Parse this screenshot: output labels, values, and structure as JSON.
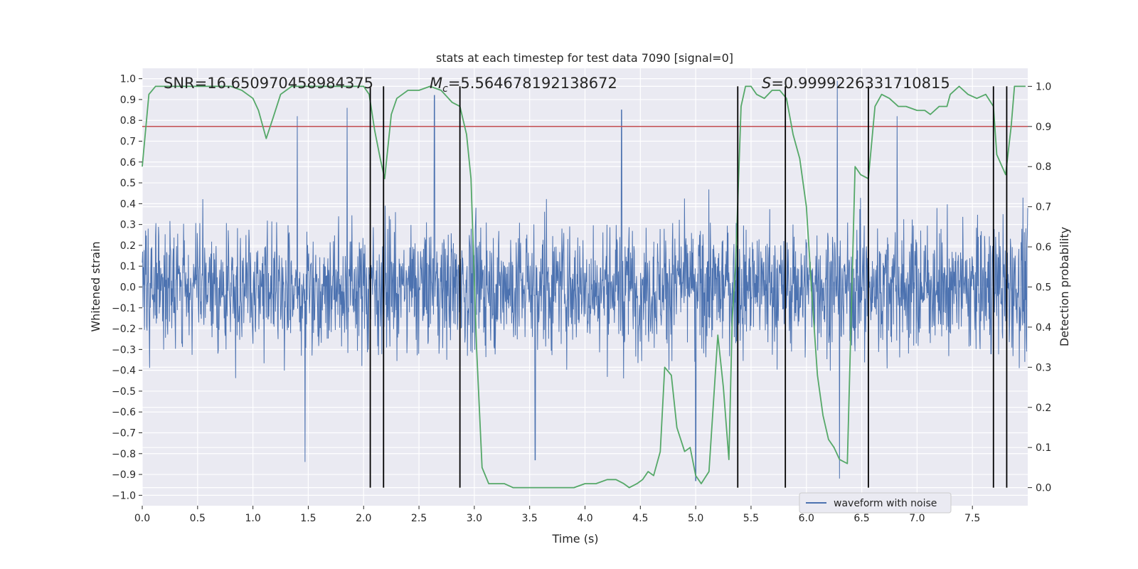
{
  "chart_data": {
    "type": "line",
    "title": "stats at each timestep for test data 7090 [signal=0]",
    "xlabel": "Time (s)",
    "ylabel_left": "Whitened strain",
    "ylabel_right": "Detection probability",
    "xlim": [
      0.0,
      8.0
    ],
    "ylim_left": [
      -1.05,
      1.05
    ],
    "ylim_right": [
      -0.045,
      1.045
    ],
    "x_ticks": [
      0.0,
      0.5,
      1.0,
      1.5,
      2.0,
      2.5,
      3.0,
      3.5,
      4.0,
      4.5,
      5.0,
      5.5,
      6.0,
      6.5,
      7.0,
      7.5
    ],
    "x_tick_labels": [
      "0.0",
      "0.5",
      "1.0",
      "1.5",
      "2.0",
      "2.5",
      "3.0",
      "3.5",
      "4.0",
      "4.5",
      "5.0",
      "5.5",
      "6.0",
      "6.5",
      "7.0",
      "7.5"
    ],
    "y_left_ticks": [
      -1.0,
      -0.9,
      -0.8,
      -0.7,
      -0.6,
      -0.5,
      -0.4,
      -0.3,
      -0.2,
      -0.1,
      0.0,
      0.1,
      0.2,
      0.3,
      0.4,
      0.5,
      0.6,
      0.7,
      0.8,
      0.9,
      1.0
    ],
    "y_left_tick_labels": [
      "−1.0",
      "−0.9",
      "−0.8",
      "−0.7",
      "−0.6",
      "−0.5",
      "−0.4",
      "−0.3",
      "−0.2",
      "−0.1",
      "0.0",
      "0.1",
      "0.2",
      "0.3",
      "0.4",
      "0.5",
      "0.6",
      "0.7",
      "0.8",
      "0.9",
      "1.0"
    ],
    "y_right_ticks": [
      0.0,
      0.1,
      0.2,
      0.3,
      0.4,
      0.5,
      0.6,
      0.7,
      0.8,
      0.9,
      1.0
    ],
    "y_right_tick_labels": [
      "0.0",
      "0.1",
      "0.2",
      "0.3",
      "0.4",
      "0.5",
      "0.6",
      "0.7",
      "0.8",
      "0.9",
      "1.0"
    ],
    "annotations": {
      "snr": "SNR=16.650970458984375",
      "mc_symbol": "M",
      "mc_sub": "c",
      "mc_value": "=5.564678192138672",
      "s_symbol": "S",
      "s_value": "=0.9999226331710815"
    },
    "threshold": {
      "value": 0.9,
      "axis": "right",
      "color": "#c44e52"
    },
    "vertical_lines": [
      2.06,
      2.18,
      2.87,
      5.38,
      5.81,
      6.56,
      7.69,
      7.81
    ],
    "legend": {
      "position": "lower-right",
      "entries": [
        {
          "label": "waveform with noise",
          "color": "#4c72b0"
        }
      ]
    },
    "series": [
      {
        "name": "waveform with noise",
        "axis": "left",
        "color": "#4c72b0",
        "style": "dense noisy waveform",
        "core_band": [
          -0.35,
          0.32
        ],
        "typical_peak_abs": 0.55,
        "peak_times": [
          1.4,
          1.85,
          2.64,
          4.33,
          6.28,
          6.82
        ],
        "peak_values": [
          0.82,
          0.86,
          0.92,
          0.85,
          0.99,
          0.82
        ],
        "trough_times": [
          1.47,
          3.55,
          5.0,
          6.3
        ],
        "trough_values": [
          -0.84,
          -0.83,
          -0.93,
          -0.92
        ]
      },
      {
        "name": "detection probability",
        "axis": "right",
        "color": "#55a868",
        "x": [
          0.0,
          0.06,
          0.12,
          0.2,
          0.3,
          0.5,
          0.7,
          0.8,
          0.9,
          0.95,
          1.0,
          1.05,
          1.12,
          1.18,
          1.25,
          1.35,
          1.5,
          1.7,
          1.9,
          2.0,
          2.05,
          2.1,
          2.15,
          2.19,
          2.25,
          2.3,
          2.4,
          2.5,
          2.6,
          2.7,
          2.8,
          2.87,
          2.93,
          2.97,
          3.02,
          3.07,
          3.13,
          3.2,
          3.27,
          3.35,
          3.5,
          3.7,
          3.9,
          4.0,
          4.1,
          4.2,
          4.28,
          4.35,
          4.4,
          4.47,
          4.52,
          4.57,
          4.62,
          4.68,
          4.72,
          4.78,
          4.83,
          4.9,
          4.95,
          5.0,
          5.05,
          5.12,
          5.2,
          5.25,
          5.3,
          5.33,
          5.36,
          5.41,
          5.45,
          5.5,
          5.55,
          5.62,
          5.69,
          5.76,
          5.82,
          5.88,
          5.94,
          6.0,
          6.05,
          6.1,
          6.15,
          6.2,
          6.25,
          6.3,
          6.37,
          6.44,
          6.49,
          6.56,
          6.62,
          6.68,
          6.75,
          6.83,
          6.9,
          7.0,
          7.07,
          7.12,
          7.2,
          7.27,
          7.3,
          7.38,
          7.46,
          7.54,
          7.62,
          7.69,
          7.72,
          7.8,
          7.85,
          7.88,
          7.92,
          7.98
        ],
        "y": [
          0.8,
          0.98,
          1.0,
          1.0,
          1.0,
          1.0,
          1.0,
          1.0,
          0.99,
          0.98,
          0.97,
          0.94,
          0.87,
          0.92,
          0.98,
          1.0,
          1.0,
          1.0,
          1.0,
          1.0,
          0.98,
          0.89,
          0.82,
          0.77,
          0.93,
          0.97,
          0.99,
          0.99,
          1.0,
          0.99,
          0.96,
          0.95,
          0.88,
          0.77,
          0.35,
          0.05,
          0.01,
          0.01,
          0.01,
          0.0,
          0.0,
          0.0,
          0.0,
          0.01,
          0.01,
          0.02,
          0.02,
          0.01,
          0.0,
          0.01,
          0.02,
          0.04,
          0.03,
          0.09,
          0.3,
          0.28,
          0.15,
          0.09,
          0.1,
          0.03,
          0.01,
          0.04,
          0.38,
          0.25,
          0.07,
          0.42,
          0.55,
          0.95,
          1.0,
          1.0,
          0.98,
          0.97,
          0.99,
          0.99,
          0.97,
          0.88,
          0.82,
          0.7,
          0.48,
          0.28,
          0.18,
          0.12,
          0.1,
          0.07,
          0.06,
          0.8,
          0.78,
          0.77,
          0.95,
          0.98,
          0.97,
          0.95,
          0.95,
          0.94,
          0.94,
          0.93,
          0.95,
          0.95,
          0.98,
          1.0,
          0.98,
          0.97,
          0.98,
          0.95,
          0.83,
          0.78,
          0.9,
          1.0,
          1.0,
          1.0
        ]
      }
    ]
  }
}
